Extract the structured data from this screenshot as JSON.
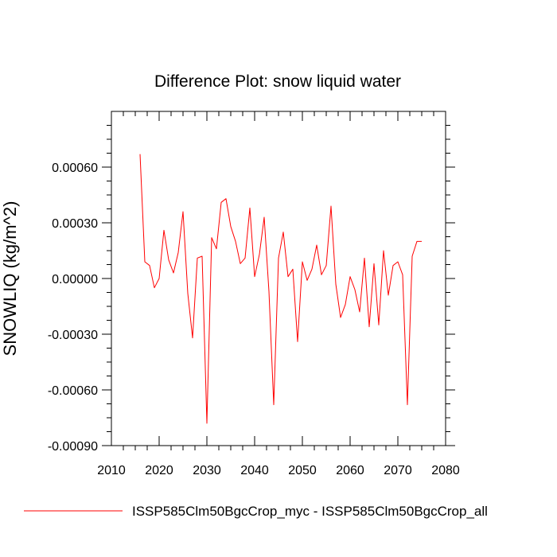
{
  "chart_data": {
    "type": "line",
    "title": "Difference Plot: snow liquid water",
    "xlabel": "",
    "ylabel": "SNOWLIQ  (kg/m^2)",
    "xlim": [
      2010,
      2080
    ],
    "ylim": [
      -0.0009,
      0.0009
    ],
    "x_ticks": [
      2010,
      2020,
      2030,
      2040,
      2050,
      2060,
      2070,
      2080
    ],
    "x_tick_labels": [
      "2010",
      "2020",
      "2030",
      "2040",
      "2050",
      "2060",
      "2070",
      "2080"
    ],
    "y_ticks": [
      -0.0009,
      -0.0006,
      -0.0003,
      0,
      0.0003,
      0.0006
    ],
    "y_tick_labels": [
      "-0.00090",
      "-0.00060",
      "-0.00030",
      "0.00000",
      "0.00030",
      "0.00060"
    ],
    "grid": false,
    "legend_position": "bottom",
    "series": [
      {
        "name": "ISSP585Clm50BgcCrop_myc - ISSP585Clm50BgcCrop_all",
        "color": "#ff0000",
        "x": [
          2016,
          2017,
          2018,
          2019,
          2020,
          2021,
          2022,
          2023,
          2024,
          2025,
          2026,
          2027,
          2028,
          2029,
          2030,
          2031,
          2032,
          2033,
          2034,
          2035,
          2036,
          2037,
          2038,
          2039,
          2040,
          2041,
          2042,
          2043,
          2044,
          2045,
          2046,
          2047,
          2048,
          2049,
          2050,
          2051,
          2052,
          2053,
          2054,
          2055,
          2056,
          2057,
          2058,
          2059,
          2060,
          2061,
          2062,
          2063,
          2064,
          2065,
          2066,
          2067,
          2068,
          2069,
          2070,
          2071,
          2072,
          2073,
          2074,
          2075
        ],
        "values": [
          0.00067,
          9e-05,
          7e-05,
          -5e-05,
          0.0,
          0.00026,
          0.0001,
          3e-05,
          0.00014,
          0.00036,
          -8e-05,
          -0.00032,
          0.00011,
          0.00012,
          -0.00078,
          0.00022,
          0.00016,
          0.00041,
          0.00043,
          0.00028,
          0.0002,
          8e-05,
          0.00011,
          0.00038,
          1e-05,
          0.00013,
          0.00033,
          -7e-05,
          -0.00068,
          0.00011,
          0.00025,
          1e-05,
          5e-05,
          -0.00034,
          9e-05,
          -1e-05,
          5e-05,
          0.00018,
          2e-05,
          7e-05,
          0.00039,
          -3e-05,
          -0.00021,
          -0.00014,
          1e-05,
          -6e-05,
          -0.00018,
          0.00011,
          -0.00026,
          8e-05,
          -0.00025,
          0.00015,
          -9e-05,
          7e-05,
          9e-05,
          2e-05,
          -0.00068,
          0.00012,
          0.0002,
          0.0002
        ]
      }
    ]
  }
}
